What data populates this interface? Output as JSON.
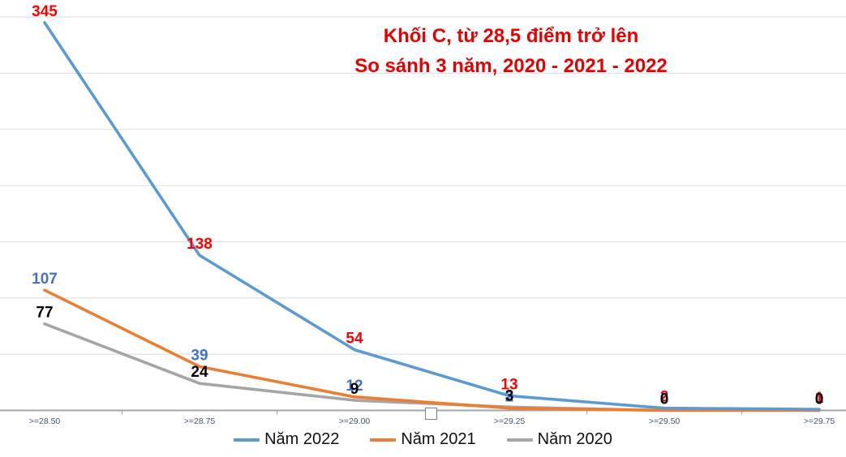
{
  "title": {
    "line1": "Khối C, từ 28,5 điểm trở lên",
    "line2": "So sánh 3 năm, 2020 - 2021 - 2022",
    "color": "#E60000"
  },
  "chart_data": {
    "type": "line",
    "categories": [
      ">=28.50",
      ">=28.75",
      ">=29.00",
      ">=29.25",
      ">=29.50",
      ">=29.75"
    ],
    "series": [
      {
        "name": "Năm 2022",
        "color": "#5B9BD5",
        "label_color": "#FF0000",
        "values": [
          345,
          138,
          54,
          13,
          2,
          1
        ]
      },
      {
        "name": "Năm 2021",
        "color": "#ED7D31",
        "label_color": "#4472C4",
        "values": [
          107,
          39,
          12,
          2,
          0,
          0
        ]
      },
      {
        "name": "Năm 2020",
        "color": "#A5A5A5",
        "label_color": "#000000",
        "values": [
          77,
          24,
          9,
          3,
          0,
          0
        ]
      }
    ],
    "ylim": [
      0,
      350
    ],
    "gridline_step": 50,
    "grid": true,
    "legend_position": "bottom",
    "data_labels": true
  },
  "axis_style": {
    "tick_label_color": "#44546A",
    "axis_line_color": "#9FA5AD",
    "gridline_color": "#DCE3EB"
  }
}
